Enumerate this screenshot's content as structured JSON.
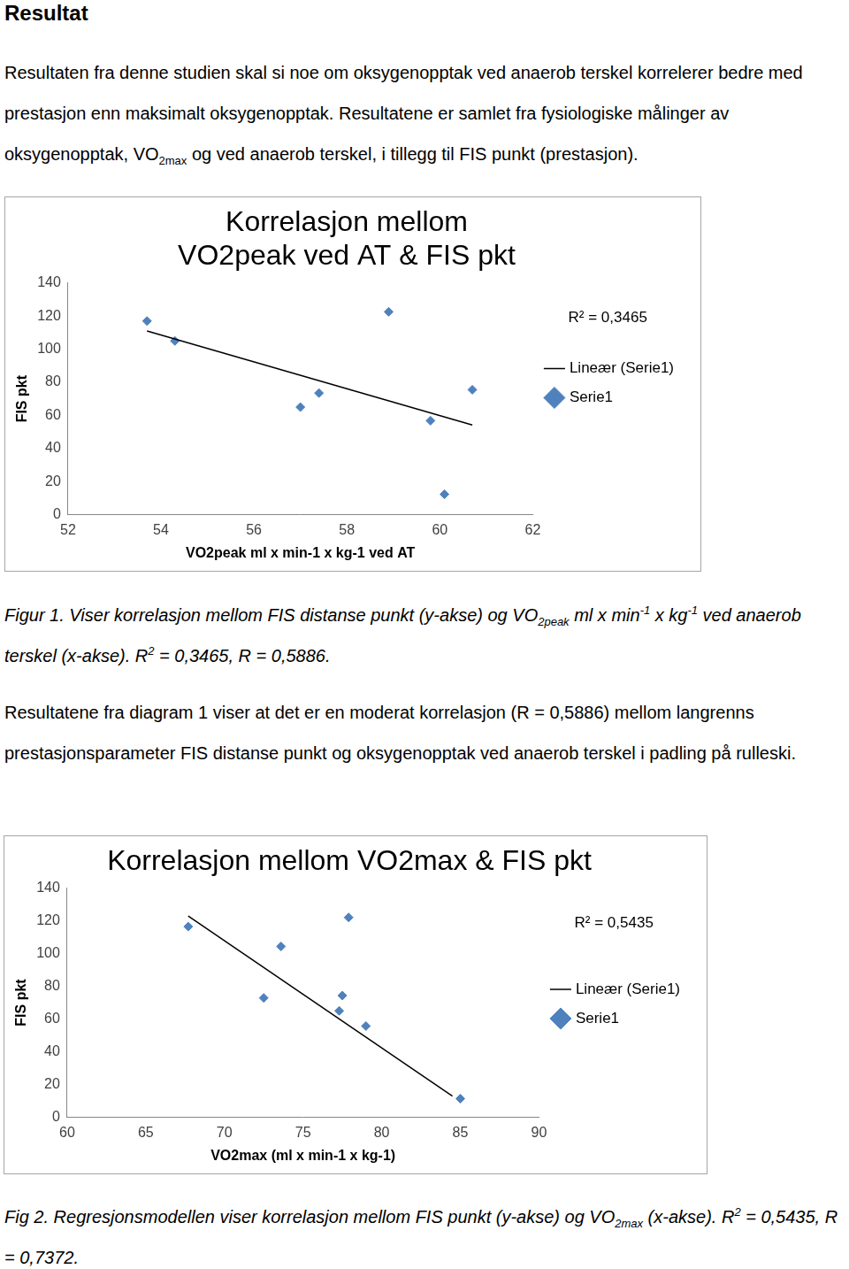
{
  "heading": "Resultat",
  "intro": [
    "Resultaten fra denne studien skal si noe om oksygenopptak ved anaerob terskel korrelerer bedre med prestasjon enn maksimalt oksygenopptak. Resultatene er samlet fra fysiologiske målinger av oksygenopptak, VO",
    {
      "sub": "2max"
    },
    " og ved anaerob terskel, i tillegg til FIS punkt (prestasjon)."
  ],
  "chart_data": [
    {
      "type": "scatter",
      "title": [
        "Korrelasjon mellom",
        "VO2peak ved AT & FIS pkt"
      ],
      "x_label": "VO2peak ml x min-1 x kg-1 ved AT",
      "y_label": "FIS pkt",
      "xlim": [
        52,
        62
      ],
      "xticks": [
        52,
        54,
        56,
        58,
        60,
        62
      ],
      "ylim": [
        0,
        140
      ],
      "yticks": [
        0,
        20,
        40,
        60,
        80,
        100,
        120,
        140
      ],
      "grid": false,
      "legend": "right",
      "annotations": [
        "R² = 0,3465"
      ],
      "series": [
        {
          "name": "Serie1",
          "color": "#4f81bd",
          "marker": "diamond",
          "x": [
            53.7,
            54.3,
            57.0,
            57.4,
            58.9,
            59.8,
            60.1,
            60.7
          ],
          "values": [
            117,
            105,
            65,
            73.5,
            122.6,
            56.8,
            12.3,
            75.5
          ]
        },
        {
          "name": "Lineær (Serie1)",
          "type": "line",
          "color": "#000000",
          "marker": "none",
          "line_style": "solid",
          "x": [
            53.7,
            60.7
          ],
          "values": [
            111,
            54.2
          ]
        }
      ]
    },
    {
      "type": "scatter",
      "title": "Korrelasjon mellom VO2max & FIS pkt",
      "x_label": "VO2max (ml x min-1 x kg-1)",
      "y_label": "FIS pkt",
      "xlim": [
        60,
        90
      ],
      "xticks": [
        60,
        65,
        70,
        75,
        80,
        85,
        90
      ],
      "ylim": [
        0,
        140
      ],
      "yticks": [
        0,
        20,
        40,
        60,
        80,
        100,
        120,
        140
      ],
      "grid": false,
      "legend": "right",
      "annotations": [
        "R² = 0,5435"
      ],
      "series": [
        {
          "name": "Serie1",
          "color": "#4f81bd",
          "marker": "diamond",
          "x": [
            67.7,
            72.5,
            73.6,
            77.9,
            77.5,
            77.3,
            79.0,
            85.0
          ],
          "values": [
            116.4,
            72.9,
            104.3,
            122,
            74.3,
            65,
            55.7,
            11.4
          ]
        },
        {
          "name": "Lineær (Serie1)",
          "type": "line",
          "color": "#000000",
          "marker": "none",
          "line_style": "solid",
          "x": [
            67.7,
            84.5
          ],
          "values": [
            122.9,
            12.9
          ]
        }
      ]
    }
  ],
  "captions": [
    [
      "Figur 1. Viser korrelasjon mellom FIS distanse punkt (y-akse) og VO",
      {
        "sub": "2peak"
      },
      " ml x min",
      {
        "sup": "-1"
      },
      " x kg",
      {
        "sup": "-1"
      },
      " ved anaerob terskel (x-akse). R",
      {
        "sup": "2"
      },
      " = 0,3465, R = 0,5886."
    ],
    [
      "Fig 2. Regresjonsmodellen viser korrelasjon mellom FIS punkt (y-akse) og VO",
      {
        "sub": "2max"
      },
      " (x-akse). R",
      {
        "sup": "2"
      },
      " = 0,5435, R = 0,7372."
    ]
  ],
  "discussion": [
    "Resultatene fra diagram 1 viser at det er en moderat korrelasjon (R = 0,5886) mellom langrenns prestasjonsparameter FIS distanse punkt og oksygenopptak ved anaerob terskel i padling på rulleski."
  ]
}
